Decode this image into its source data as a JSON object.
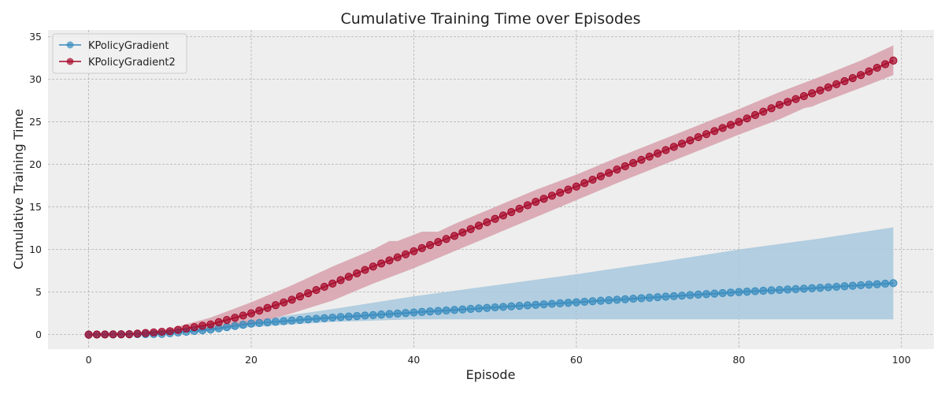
{
  "chart_data": {
    "type": "line",
    "title": "Cumulative Training Time over Episodes",
    "xlabel": "Episode",
    "ylabel": "Cumulative Training Time",
    "xlim": [
      -5,
      104
    ],
    "ylim": [
      -1.7,
      35.8
    ],
    "xticks": [
      0,
      20,
      40,
      60,
      80,
      100
    ],
    "yticks": [
      0,
      5,
      10,
      15,
      20,
      25,
      30,
      35
    ],
    "grid": true,
    "legend_position": "top-left",
    "series": [
      {
        "name": "KPolicyGradient",
        "color": "#348ABD",
        "band_color": "#A7C8DD",
        "mean_points": [
          [
            0,
            0
          ],
          [
            9,
            0.08
          ],
          [
            15,
            0.6
          ],
          [
            20,
            1.3
          ],
          [
            30,
            2.0
          ],
          [
            40,
            2.6
          ],
          [
            50,
            3.2
          ],
          [
            60,
            3.8
          ],
          [
            70,
            4.4
          ],
          [
            80,
            5.0
          ],
          [
            90,
            5.5
          ],
          [
            99,
            6.05
          ]
        ],
        "band_upper": [
          [
            0,
            0
          ],
          [
            9,
            0.15
          ],
          [
            15,
            0.9
          ],
          [
            20,
            1.65
          ],
          [
            30,
            3.0
          ],
          [
            40,
            4.5
          ],
          [
            50,
            5.8
          ],
          [
            60,
            7.1
          ],
          [
            70,
            8.5
          ],
          [
            80,
            10.0
          ],
          [
            90,
            11.3
          ],
          [
            99,
            12.6
          ]
        ],
        "band_lower": [
          [
            0,
            0
          ],
          [
            9,
            0.0
          ],
          [
            15,
            0.35
          ],
          [
            20,
            0.9
          ],
          [
            30,
            1.5
          ],
          [
            40,
            1.8
          ],
          [
            50,
            1.8
          ],
          [
            60,
            1.8
          ],
          [
            70,
            1.8
          ],
          [
            80,
            1.8
          ],
          [
            90,
            1.8
          ],
          [
            99,
            1.8
          ]
        ]
      },
      {
        "name": "KPolicyGradient2",
        "color": "#A60628",
        "band_color": "#D7A0AB",
        "mean_points": [
          [
            0,
            0
          ],
          [
            5,
            0.05
          ],
          [
            10,
            0.4
          ],
          [
            15,
            1.2
          ],
          [
            20,
            2.5
          ],
          [
            25,
            4.1
          ],
          [
            30,
            6.0
          ],
          [
            35,
            8.0
          ],
          [
            40,
            9.8
          ],
          [
            45,
            11.6
          ],
          [
            50,
            13.6
          ],
          [
            55,
            15.6
          ],
          [
            60,
            17.4
          ],
          [
            65,
            19.4
          ],
          [
            70,
            21.3
          ],
          [
            75,
            23.2
          ],
          [
            80,
            25.0
          ],
          [
            85,
            27.0
          ],
          [
            90,
            28.7
          ],
          [
            95,
            30.5
          ],
          [
            99,
            32.2
          ]
        ],
        "band_upper": [
          [
            0,
            0
          ],
          [
            5,
            0.1
          ],
          [
            10,
            0.7
          ],
          [
            15,
            2.0
          ],
          [
            20,
            3.8
          ],
          [
            25,
            5.8
          ],
          [
            30,
            8.0
          ],
          [
            35,
            10.0
          ],
          [
            37,
            11.0
          ],
          [
            38,
            11.0
          ],
          [
            41,
            12.1
          ],
          [
            43,
            12.1
          ],
          [
            45,
            13.0
          ],
          [
            50,
            15.0
          ],
          [
            55,
            17.0
          ],
          [
            60,
            18.8
          ],
          [
            65,
            20.8
          ],
          [
            70,
            22.7
          ],
          [
            75,
            24.6
          ],
          [
            80,
            26.5
          ],
          [
            85,
            28.5
          ],
          [
            90,
            30.3
          ],
          [
            95,
            32.2
          ],
          [
            99,
            34.0
          ]
        ],
        "band_lower": [
          [
            0,
            0
          ],
          [
            5,
            0.0
          ],
          [
            10,
            0.1
          ],
          [
            15,
            0.5
          ],
          [
            20,
            1.2
          ],
          [
            25,
            2.5
          ],
          [
            30,
            4.0
          ],
          [
            35,
            6.0
          ],
          [
            40,
            7.8
          ],
          [
            45,
            9.8
          ],
          [
            50,
            11.8
          ],
          [
            55,
            13.8
          ],
          [
            60,
            15.8
          ],
          [
            65,
            17.8
          ],
          [
            70,
            19.7
          ],
          [
            75,
            21.6
          ],
          [
            80,
            23.5
          ],
          [
            85,
            25.3
          ],
          [
            88,
            26.6
          ],
          [
            89,
            26.8
          ],
          [
            90,
            27.2
          ],
          [
            95,
            29.0
          ],
          [
            99,
            30.5
          ]
        ]
      }
    ]
  }
}
